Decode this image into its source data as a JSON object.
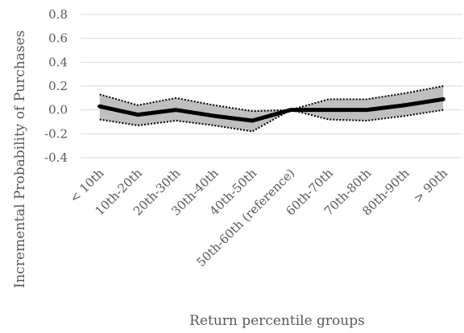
{
  "chart_data": {
    "type": "line",
    "title": "",
    "xlabel": "Return percentile groups",
    "ylabel": "Incremental Probability of Purchases",
    "categories": [
      "< 10th",
      "10th-20th",
      "20th-30th",
      "30th-40th",
      "40th-50th",
      "50th-60th (reference)",
      "60th-70th",
      "70th-80th",
      "80th-90th",
      "> 90th"
    ],
    "y_ticks": [
      "0.8",
      "0.6",
      "0.4",
      "0.2",
      "0.0",
      "-0.2",
      "-0.4"
    ],
    "ylim": [
      -0.4,
      0.8
    ],
    "grid": "horizontal",
    "legend": "none",
    "series": [
      {
        "role": "estimate",
        "values": [
          0.03,
          -0.04,
          0.0,
          -0.05,
          -0.09,
          0.0,
          0.0,
          0.0,
          0.04,
          0.09
        ]
      },
      {
        "role": "upper-bound",
        "values": [
          0.13,
          0.04,
          0.1,
          0.04,
          -0.01,
          0.0,
          0.09,
          0.09,
          0.14,
          0.2
        ]
      },
      {
        "role": "lower-bound",
        "values": [
          -0.08,
          -0.13,
          -0.09,
          -0.13,
          -0.18,
          0.0,
          -0.08,
          -0.09,
          -0.05,
          0.0
        ]
      }
    ],
    "colors": {
      "estimate": "#000000",
      "band": "#bfbfbf",
      "grid": "#d9d9d9",
      "text": "#595959"
    }
  }
}
